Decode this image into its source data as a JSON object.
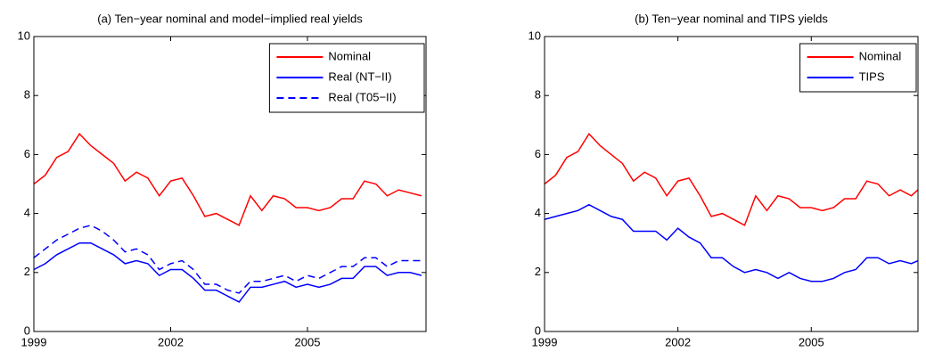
{
  "chart_data": [
    {
      "type": "line",
      "title": "(a) Ten−year nominal and model−implied real yields",
      "x": [
        1999,
        1999.25,
        1999.5,
        1999.75,
        2000,
        2000.25,
        2000.5,
        2000.75,
        2001,
        2001.25,
        2001.5,
        2001.75,
        2002,
        2002.25,
        2002.5,
        2002.75,
        2003,
        2003.25,
        2003.5,
        2003.75,
        2004,
        2004.25,
        2004.5,
        2004.75,
        2005,
        2005.25,
        2005.5,
        2005.75,
        2006,
        2006.25,
        2006.5,
        2006.75,
        2007,
        2007.25,
        2007.5
      ],
      "series": [
        {
          "name": "Nominal",
          "color": "#ff0000",
          "dashed": false,
          "values": [
            5.0,
            5.3,
            5.9,
            6.1,
            6.7,
            6.3,
            6.0,
            5.7,
            5.1,
            5.4,
            5.2,
            4.6,
            5.1,
            5.2,
            4.6,
            3.9,
            4.0,
            3.8,
            3.6,
            4.6,
            4.1,
            4.6,
            4.5,
            4.2,
            4.2,
            4.1,
            4.2,
            4.5,
            4.5,
            5.1,
            5.0,
            4.6,
            4.8,
            4.7,
            4.6
          ]
        },
        {
          "name": "Real (NT−II)",
          "color": "#0000ff",
          "dashed": false,
          "values": [
            2.1,
            2.3,
            2.6,
            2.8,
            3.0,
            3.0,
            2.8,
            2.6,
            2.3,
            2.4,
            2.3,
            1.9,
            2.1,
            2.1,
            1.8,
            1.4,
            1.4,
            1.2,
            1.0,
            1.5,
            1.5,
            1.6,
            1.7,
            1.5,
            1.6,
            1.5,
            1.6,
            1.8,
            1.8,
            2.2,
            2.2,
            1.9,
            2.0,
            2.0,
            1.9
          ]
        },
        {
          "name": "Real (T05−II)",
          "color": "#0000ff",
          "dashed": true,
          "values": [
            2.5,
            2.8,
            3.1,
            3.3,
            3.5,
            3.6,
            3.4,
            3.1,
            2.7,
            2.8,
            2.6,
            2.1,
            2.3,
            2.4,
            2.1,
            1.6,
            1.6,
            1.4,
            1.3,
            1.7,
            1.7,
            1.8,
            1.9,
            1.7,
            1.9,
            1.8,
            2.0,
            2.2,
            2.2,
            2.5,
            2.5,
            2.2,
            2.4,
            2.4,
            2.4
          ]
        }
      ],
      "xlim": [
        1999,
        2007.6
      ],
      "ylim": [
        0,
        10
      ],
      "xticks": [
        1999,
        2002,
        2005
      ],
      "yticks": [
        0,
        2,
        4,
        6,
        8,
        10
      ],
      "legend": "upper right"
    },
    {
      "type": "line",
      "title": "(b) Ten−year nominal and TIPS yields",
      "x": [
        1999,
        1999.25,
        1999.5,
        1999.75,
        2000,
        2000.25,
        2000.5,
        2000.75,
        2001,
        2001.25,
        2001.5,
        2001.75,
        2002,
        2002.25,
        2002.5,
        2002.75,
        2003,
        2003.25,
        2003.5,
        2003.75,
        2004,
        2004.25,
        2004.5,
        2004.75,
        2005,
        2005.25,
        2005.5,
        2005.75,
        2006,
        2006.25,
        2006.5,
        2006.75,
        2007,
        2007.25,
        2007.4
      ],
      "series": [
        {
          "name": "Nominal",
          "color": "#ff0000",
          "dashed": false,
          "values": [
            5.0,
            5.3,
            5.9,
            6.1,
            6.7,
            6.3,
            6.0,
            5.7,
            5.1,
            5.4,
            5.2,
            4.6,
            5.1,
            5.2,
            4.6,
            3.9,
            4.0,
            3.8,
            3.6,
            4.6,
            4.1,
            4.6,
            4.5,
            4.2,
            4.2,
            4.1,
            4.2,
            4.5,
            4.5,
            5.1,
            5.0,
            4.6,
            4.8,
            4.6,
            4.8
          ]
        },
        {
          "name": "TIPS",
          "color": "#0000ff",
          "dashed": false,
          "values": [
            3.8,
            3.9,
            4.0,
            4.1,
            4.3,
            4.1,
            3.9,
            3.8,
            3.4,
            3.4,
            3.4,
            3.1,
            3.5,
            3.2,
            3.0,
            2.5,
            2.5,
            2.2,
            2.0,
            2.1,
            2.0,
            1.8,
            2.0,
            1.8,
            1.7,
            1.7,
            1.8,
            2.0,
            2.1,
            2.5,
            2.5,
            2.3,
            2.4,
            2.3,
            2.4
          ]
        }
      ],
      "xlim": [
        1999,
        2007.4
      ],
      "ylim": [
        0,
        10
      ],
      "xticks": [
        1999,
        2002,
        2005
      ],
      "yticks": [
        0,
        2,
        4,
        6,
        8,
        10
      ],
      "legend": "upper right"
    }
  ]
}
